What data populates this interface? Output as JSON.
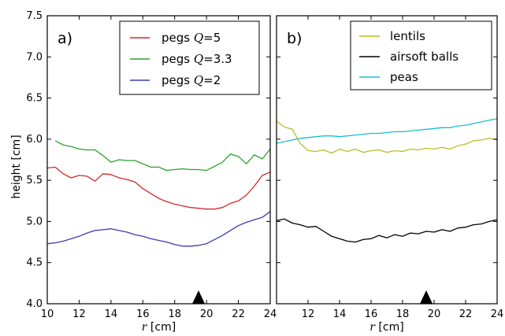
{
  "chart_data": [
    {
      "type": "line",
      "panel_label": "a)",
      "xlabel": "r [cm]",
      "ylabel": "height [cm]",
      "xlim": [
        10,
        24
      ],
      "ylim": [
        4.0,
        7.5
      ],
      "xticks": [
        10,
        12,
        14,
        16,
        18,
        20,
        22,
        24
      ],
      "yticks": [
        4.0,
        4.5,
        5.0,
        5.5,
        6.0,
        6.5,
        7.0,
        7.5
      ],
      "legend_position": "top-right",
      "marker": {
        "x": 19.5,
        "shape": "triangle"
      },
      "series": [
        {
          "name": "pegs Q=5",
          "color": "#d62728",
          "x": [
            10.0,
            10.5,
            11.0,
            11.5,
            12.0,
            12.5,
            13.0,
            13.5,
            14.0,
            14.5,
            15.0,
            15.5,
            16.0,
            16.5,
            17.0,
            17.5,
            18.0,
            18.5,
            19.0,
            19.5,
            20.0,
            20.5,
            21.0,
            21.5,
            22.0,
            22.5,
            23.0,
            23.5,
            24.0
          ],
          "y": [
            5.65,
            5.66,
            5.58,
            5.53,
            5.56,
            5.55,
            5.49,
            5.58,
            5.57,
            5.53,
            5.51,
            5.48,
            5.4,
            5.34,
            5.28,
            5.24,
            5.21,
            5.19,
            5.17,
            5.16,
            5.15,
            5.15,
            5.17,
            5.22,
            5.25,
            5.32,
            5.43,
            5.56,
            5.6
          ]
        },
        {
          "name": "pegs Q=3.3",
          "color": "#2ca02c",
          "x": [
            10.5,
            11.0,
            11.5,
            12.0,
            12.5,
            13.0,
            13.5,
            14.0,
            14.5,
            15.0,
            15.5,
            16.0,
            16.5,
            17.0,
            17.5,
            18.0,
            18.5,
            19.0,
            19.5,
            20.0,
            20.5,
            21.0,
            21.5,
            22.0,
            22.5,
            23.0,
            23.5,
            24.0
          ],
          "y": [
            5.98,
            5.93,
            5.91,
            5.88,
            5.87,
            5.87,
            5.8,
            5.72,
            5.75,
            5.74,
            5.74,
            5.7,
            5.66,
            5.66,
            5.62,
            5.63,
            5.64,
            5.63,
            5.63,
            5.62,
            5.67,
            5.72,
            5.82,
            5.79,
            5.7,
            5.81,
            5.76,
            5.88
          ]
        },
        {
          "name": "pegs Q=2",
          "color": "#3b3bb3",
          "x": [
            10.0,
            10.5,
            11.0,
            11.5,
            12.0,
            12.5,
            13.0,
            13.5,
            14.0,
            14.5,
            15.0,
            15.5,
            16.0,
            16.5,
            17.0,
            17.5,
            18.0,
            18.5,
            19.0,
            19.5,
            20.0,
            20.5,
            21.0,
            21.5,
            22.0,
            22.5,
            23.0,
            23.5,
            24.0
          ],
          "y": [
            4.73,
            4.74,
            4.76,
            4.79,
            4.82,
            4.86,
            4.89,
            4.9,
            4.91,
            4.89,
            4.87,
            4.84,
            4.82,
            4.79,
            4.77,
            4.75,
            4.72,
            4.7,
            4.7,
            4.71,
            4.73,
            4.78,
            4.83,
            4.89,
            4.95,
            4.99,
            5.02,
            5.05,
            5.12
          ]
        }
      ]
    },
    {
      "type": "line",
      "panel_label": "b)",
      "xlabel": "r [cm]",
      "xlim": [
        10,
        24
      ],
      "ylim": [
        4.0,
        7.5
      ],
      "xticks": [
        12,
        14,
        16,
        18,
        20,
        22,
        24
      ],
      "legend_position": "top-right",
      "marker": {
        "x": 19.5,
        "shape": "triangle"
      },
      "series": [
        {
          "name": "lentils",
          "color": "#bcbd22",
          "x": [
            10.0,
            10.5,
            11.0,
            11.5,
            12.0,
            12.5,
            13.0,
            13.5,
            14.0,
            14.5,
            15.0,
            15.5,
            16.0,
            16.5,
            17.0,
            17.5,
            18.0,
            18.5,
            19.0,
            19.5,
            20.0,
            20.5,
            21.0,
            21.5,
            22.0,
            22.5,
            23.0,
            23.5,
            24.0
          ],
          "y": [
            6.22,
            6.15,
            6.12,
            5.95,
            5.86,
            5.85,
            5.87,
            5.83,
            5.88,
            5.85,
            5.88,
            5.84,
            5.86,
            5.87,
            5.84,
            5.86,
            5.85,
            5.88,
            5.87,
            5.89,
            5.88,
            5.9,
            5.88,
            5.92,
            5.94,
            5.98,
            5.99,
            6.01,
            5.99
          ]
        },
        {
          "name": "airsoft balls",
          "color": "#000000",
          "x": [
            10.0,
            10.5,
            11.0,
            11.5,
            12.0,
            12.5,
            13.0,
            13.5,
            14.0,
            14.5,
            15.0,
            15.5,
            16.0,
            16.5,
            17.0,
            17.5,
            18.0,
            18.5,
            19.0,
            19.5,
            20.0,
            20.5,
            21.0,
            21.5,
            22.0,
            22.5,
            23.0,
            23.5,
            24.0
          ],
          "y": [
            5.01,
            5.03,
            4.98,
            4.96,
            4.93,
            4.94,
            4.88,
            4.82,
            4.79,
            4.76,
            4.75,
            4.78,
            4.79,
            4.83,
            4.8,
            4.84,
            4.82,
            4.86,
            4.85,
            4.88,
            4.87,
            4.9,
            4.88,
            4.92,
            4.93,
            4.96,
            4.97,
            5.0,
            5.02
          ]
        },
        {
          "name": "peas",
          "color": "#17becf",
          "x": [
            10.0,
            10.5,
            11.0,
            11.5,
            12.0,
            12.5,
            13.0,
            13.5,
            14.0,
            14.5,
            15.0,
            15.5,
            16.0,
            16.5,
            17.0,
            17.5,
            18.0,
            18.5,
            19.0,
            19.5,
            20.0,
            20.5,
            21.0,
            21.5,
            22.0,
            22.5,
            23.0,
            23.5,
            24.0
          ],
          "y": [
            5.95,
            5.97,
            5.99,
            6.01,
            6.02,
            6.03,
            6.04,
            6.04,
            6.03,
            6.04,
            6.05,
            6.06,
            6.07,
            6.07,
            6.08,
            6.09,
            6.09,
            6.1,
            6.11,
            6.12,
            6.13,
            6.14,
            6.14,
            6.16,
            6.17,
            6.19,
            6.21,
            6.23,
            6.25
          ]
        }
      ]
    }
  ]
}
